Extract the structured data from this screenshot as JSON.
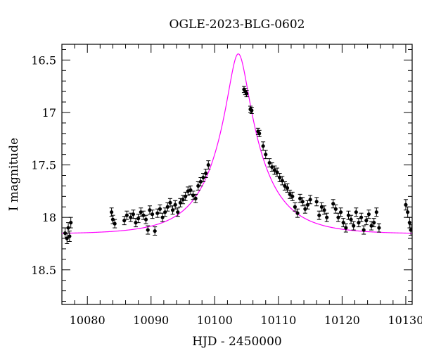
{
  "chart_data": {
    "type": "scatter",
    "title": "OGLE-2023-BLG-0602",
    "xlabel": "HJD - 2450000",
    "ylabel": "I magnitude",
    "xlim": [
      10076,
      10131
    ],
    "ylim": [
      18.83,
      16.35
    ],
    "y_inverted": true,
    "grid": false,
    "x_ticks": [
      10080,
      10090,
      10100,
      10110,
      10120,
      10130
    ],
    "x_tick_labels": [
      "10080",
      "10090",
      "10100",
      "10110",
      "10120",
      "10130"
    ],
    "y_ticks": [
      16.5,
      17,
      17.5,
      18,
      18.5
    ],
    "y_tick_labels": [
      "16.5",
      "17",
      "17.5",
      "18",
      "18.5"
    ],
    "colors": {
      "data": "#000000",
      "model": "#ff00ff"
    },
    "model": {
      "name": "",
      "t0": 10103.7,
      "u0": 0.2,
      "tE": 7.5,
      "baseline_mag": 18.16,
      "fs": 0.95
    },
    "series": [
      {
        "points": [
          [
            10076.5,
            18.15,
            0.05
          ],
          [
            10076.8,
            18.2,
            0.05
          ],
          [
            10077.0,
            18.1,
            0.05
          ],
          [
            10077.2,
            18.18,
            0.05
          ],
          [
            10077.4,
            18.05,
            0.05
          ],
          [
            10083.8,
            17.95,
            0.04
          ],
          [
            10084.0,
            18.02,
            0.04
          ],
          [
            10084.3,
            18.06,
            0.04
          ],
          [
            10085.8,
            18.03,
            0.04
          ],
          [
            10086.2,
            17.98,
            0.04
          ],
          [
            10086.8,
            18.0,
            0.04
          ],
          [
            10087.2,
            17.97,
            0.04
          ],
          [
            10087.6,
            18.05,
            0.04
          ],
          [
            10088.0,
            18.01,
            0.04
          ],
          [
            10088.4,
            17.95,
            0.04
          ],
          [
            10088.8,
            17.98,
            0.04
          ],
          [
            10089.2,
            18.02,
            0.04
          ],
          [
            10089.5,
            18.12,
            0.04
          ],
          [
            10089.8,
            17.93,
            0.04
          ],
          [
            10090.2,
            17.97,
            0.04
          ],
          [
            10090.6,
            18.13,
            0.04
          ],
          [
            10091.0,
            17.96,
            0.04
          ],
          [
            10091.4,
            17.92,
            0.04
          ],
          [
            10091.8,
            18.0,
            0.04
          ],
          [
            10092.2,
            17.95,
            0.04
          ],
          [
            10092.6,
            17.9,
            0.04
          ],
          [
            10093.0,
            17.86,
            0.04
          ],
          [
            10093.4,
            17.93,
            0.04
          ],
          [
            10093.8,
            17.88,
            0.04
          ],
          [
            10094.2,
            17.95,
            0.04
          ],
          [
            10094.6,
            17.86,
            0.04
          ],
          [
            10095.0,
            17.83,
            0.04
          ],
          [
            10095.4,
            17.8,
            0.04
          ],
          [
            10095.8,
            17.75,
            0.04
          ],
          [
            10096.2,
            17.74,
            0.04
          ],
          [
            10096.6,
            17.79,
            0.04
          ],
          [
            10097.0,
            17.82,
            0.04
          ],
          [
            10097.4,
            17.7,
            0.04
          ],
          [
            10097.8,
            17.66,
            0.04
          ],
          [
            10098.2,
            17.62,
            0.04
          ],
          [
            10098.6,
            17.58,
            0.04
          ],
          [
            10099.0,
            17.5,
            0.04
          ],
          [
            10104.6,
            16.78,
            0.03
          ],
          [
            10104.8,
            16.8,
            0.03
          ],
          [
            10105.0,
            16.82,
            0.03
          ],
          [
            10105.6,
            16.97,
            0.03
          ],
          [
            10105.8,
            16.98,
            0.03
          ],
          [
            10106.8,
            17.18,
            0.03
          ],
          [
            10107.0,
            17.2,
            0.03
          ],
          [
            10107.6,
            17.32,
            0.04
          ],
          [
            10108.0,
            17.4,
            0.04
          ],
          [
            10108.6,
            17.48,
            0.04
          ],
          [
            10109.0,
            17.52,
            0.04
          ],
          [
            10109.4,
            17.55,
            0.04
          ],
          [
            10109.8,
            17.57,
            0.04
          ],
          [
            10110.2,
            17.62,
            0.04
          ],
          [
            10110.6,
            17.65,
            0.04
          ],
          [
            10111.0,
            17.7,
            0.04
          ],
          [
            10111.4,
            17.72,
            0.04
          ],
          [
            10111.8,
            17.78,
            0.04
          ],
          [
            10112.2,
            17.8,
            0.04
          ],
          [
            10112.6,
            17.9,
            0.04
          ],
          [
            10113.0,
            17.96,
            0.04
          ],
          [
            10113.4,
            17.82,
            0.04
          ],
          [
            10113.8,
            17.85,
            0.04
          ],
          [
            10114.2,
            17.92,
            0.04
          ],
          [
            10114.6,
            17.88,
            0.04
          ],
          [
            10115.0,
            17.83,
            0.04
          ],
          [
            10116.0,
            17.85,
            0.04
          ],
          [
            10116.4,
            17.98,
            0.04
          ],
          [
            10116.8,
            17.9,
            0.04
          ],
          [
            10117.2,
            17.93,
            0.04
          ],
          [
            10117.6,
            18.0,
            0.04
          ],
          [
            10118.6,
            17.87,
            0.04
          ],
          [
            10119.0,
            17.92,
            0.04
          ],
          [
            10119.4,
            18.0,
            0.04
          ],
          [
            10119.8,
            17.95,
            0.04
          ],
          [
            10120.2,
            18.05,
            0.04
          ],
          [
            10120.6,
            18.1,
            0.04
          ],
          [
            10121.0,
            17.98,
            0.04
          ],
          [
            10121.4,
            18.02,
            0.04
          ],
          [
            10121.8,
            18.08,
            0.04
          ],
          [
            10122.2,
            17.95,
            0.04
          ],
          [
            10122.6,
            18.05,
            0.04
          ],
          [
            10123.0,
            18.0,
            0.04
          ],
          [
            10123.4,
            18.12,
            0.04
          ],
          [
            10123.8,
            18.03,
            0.04
          ],
          [
            10124.2,
            17.97,
            0.04
          ],
          [
            10124.6,
            18.08,
            0.04
          ],
          [
            10125.0,
            18.05,
            0.04
          ],
          [
            10125.4,
            17.95,
            0.04
          ],
          [
            10125.8,
            18.1,
            0.04
          ],
          [
            10130.0,
            17.88,
            0.05
          ],
          [
            10130.3,
            17.95,
            0.05
          ],
          [
            10130.6,
            18.05,
            0.05
          ],
          [
            10130.8,
            18.12,
            0.05
          ]
        ]
      }
    ]
  }
}
